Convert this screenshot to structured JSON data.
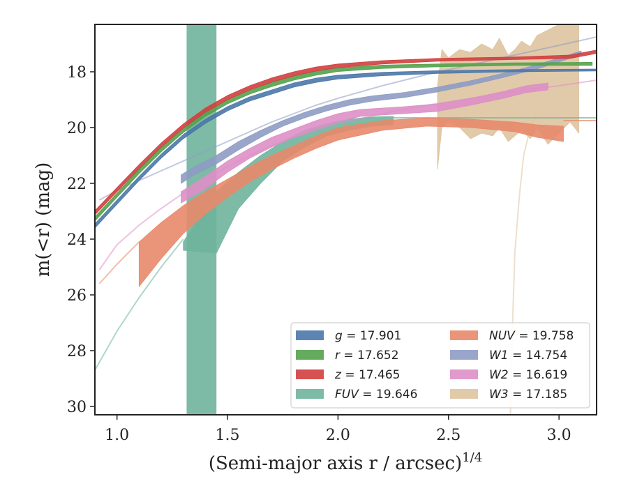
{
  "chart_data": {
    "type": "line",
    "title": "",
    "xlabel": "(Semi-major axis r / arcsec)",
    "xlabel_sup": "1/4",
    "ylabel": "m(<r) (mag)",
    "xlim": [
      0.9,
      3.17
    ],
    "ylim": [
      30.3,
      16.3
    ],
    "y_inverted": true,
    "x_ticks": [
      1.0,
      1.5,
      2.0,
      2.5,
      3.0
    ],
    "x_tick_labels": [
      "1.0",
      "1.5",
      "2.0",
      "2.5",
      "3.0"
    ],
    "y_ticks": [
      18,
      20,
      22,
      24,
      26,
      28,
      30
    ],
    "y_tick_labels": [
      "18",
      "20",
      "22",
      "24",
      "26",
      "28",
      "30"
    ],
    "grid": false,
    "legend_position": "lower-right",
    "legend": [
      {
        "name": "g",
        "value": "17.901"
      },
      {
        "name": "r",
        "value": "17.652"
      },
      {
        "name": "z",
        "value": "17.465"
      },
      {
        "name": "FUV",
        "value": "19.646"
      },
      {
        "name": "NUV",
        "value": "19.758"
      },
      {
        "name": "W1",
        "value": "14.754"
      },
      {
        "name": "W2",
        "value": "16.619"
      },
      {
        "name": "W3",
        "value": "17.185"
      }
    ],
    "series": [
      {
        "name": "g",
        "total": 17.901,
        "color": "#4c78a8",
        "faint": [],
        "band": [
          [
            0.9,
            23.45,
            23.6
          ],
          [
            1.0,
            22.6,
            22.75
          ],
          [
            1.1,
            21.75,
            21.9
          ],
          [
            1.2,
            20.95,
            21.1
          ],
          [
            1.3,
            20.25,
            20.4
          ],
          [
            1.4,
            19.7,
            19.85
          ],
          [
            1.5,
            19.25,
            19.4
          ],
          [
            1.6,
            18.9,
            19.05
          ],
          [
            1.7,
            18.65,
            18.8
          ],
          [
            1.8,
            18.4,
            18.55
          ],
          [
            1.9,
            18.23,
            18.38
          ],
          [
            2.0,
            18.12,
            18.26
          ],
          [
            2.2,
            18.02,
            18.14
          ],
          [
            2.45,
            17.96,
            18.06
          ],
          [
            2.8,
            17.92,
            18.0
          ],
          [
            3.17,
            17.9,
            17.97
          ]
        ]
      },
      {
        "name": "r",
        "total": 17.652,
        "color": "#54a24b",
        "faint": [],
        "band": [
          [
            0.9,
            23.2,
            23.35
          ],
          [
            1.0,
            22.35,
            22.5
          ],
          [
            1.1,
            21.5,
            21.65
          ],
          [
            1.2,
            20.72,
            20.87
          ],
          [
            1.3,
            20.03,
            20.18
          ],
          [
            1.4,
            19.45,
            19.6
          ],
          [
            1.5,
            19.0,
            19.15
          ],
          [
            1.6,
            18.65,
            18.8
          ],
          [
            1.7,
            18.38,
            18.53
          ],
          [
            1.8,
            18.15,
            18.3
          ],
          [
            1.9,
            17.98,
            18.12
          ],
          [
            2.0,
            17.86,
            17.99
          ],
          [
            2.2,
            17.76,
            17.88
          ],
          [
            2.45,
            17.72,
            17.82
          ],
          [
            2.8,
            17.68,
            17.77
          ],
          [
            3.15,
            17.66,
            17.77
          ]
        ]
      },
      {
        "name": "z",
        "total": 17.465,
        "color": "#d13f3f",
        "faint": [],
        "band": [
          [
            0.9,
            22.98,
            23.13
          ],
          [
            1.0,
            22.15,
            22.3
          ],
          [
            1.1,
            21.33,
            21.48
          ],
          [
            1.2,
            20.55,
            20.7
          ],
          [
            1.3,
            19.87,
            20.02
          ],
          [
            1.4,
            19.3,
            19.45
          ],
          [
            1.5,
            18.85,
            19.0
          ],
          [
            1.6,
            18.5,
            18.65
          ],
          [
            1.7,
            18.22,
            18.37
          ],
          [
            1.8,
            18.0,
            18.15
          ],
          [
            1.9,
            17.83,
            17.97
          ],
          [
            2.0,
            17.72,
            17.85
          ],
          [
            2.2,
            17.6,
            17.72
          ],
          [
            2.45,
            17.52,
            17.62
          ],
          [
            2.8,
            17.47,
            17.56
          ],
          [
            3.05,
            17.4,
            17.52
          ],
          [
            3.17,
            17.22,
            17.34
          ]
        ]
      },
      {
        "name": "FUV",
        "total": 19.646,
        "color": "#6fb49c",
        "faint": [
          [
            0.9,
            28.7
          ],
          [
            1.0,
            27.3
          ],
          [
            1.1,
            26.1
          ],
          [
            1.2,
            25.0
          ],
          [
            1.3,
            24.0
          ]
        ],
        "flat": {
          "x0": 2.25,
          "x1": 3.17,
          "y": 19.65
        },
        "spike": {
          "x0": 1.315,
          "x1": 1.45,
          "y0": 16.3,
          "y1": 30.3
        },
        "band": [
          [
            1.3,
            24.1,
            24.4
          ],
          [
            1.45,
            22.3,
            24.5
          ],
          [
            1.55,
            21.6,
            22.9
          ],
          [
            1.65,
            21.0,
            22.0
          ],
          [
            1.75,
            20.5,
            21.2
          ],
          [
            1.85,
            20.1,
            20.7
          ],
          [
            1.95,
            19.85,
            20.3
          ],
          [
            2.05,
            19.7,
            20.1
          ],
          [
            2.15,
            19.62,
            19.95
          ],
          [
            2.25,
            19.6,
            19.9
          ]
        ]
      },
      {
        "name": "NUV",
        "total": 19.758,
        "color": "#e8896a",
        "faint": [
          [
            0.92,
            25.6
          ],
          [
            1.0,
            24.9
          ],
          [
            1.1,
            24.1
          ]
        ],
        "flat": {
          "x0": 3.02,
          "x1": 3.17,
          "y": 19.75
        },
        "band": [
          [
            1.1,
            24.1,
            25.7
          ],
          [
            1.2,
            23.4,
            24.7
          ],
          [
            1.3,
            22.8,
            23.8
          ],
          [
            1.4,
            22.3,
            23.1
          ],
          [
            1.5,
            21.85,
            22.5
          ],
          [
            1.6,
            21.4,
            21.95
          ],
          [
            1.7,
            21.0,
            21.5
          ],
          [
            1.8,
            20.65,
            21.1
          ],
          [
            1.9,
            20.3,
            20.75
          ],
          [
            2.0,
            20.0,
            20.45
          ],
          [
            2.2,
            19.75,
            20.1
          ],
          [
            2.4,
            19.65,
            19.95
          ],
          [
            2.6,
            19.7,
            20.0
          ],
          [
            2.8,
            19.8,
            20.15
          ],
          [
            2.9,
            19.9,
            20.35
          ],
          [
            3.02,
            19.95,
            20.5
          ]
        ]
      },
      {
        "name": "W1",
        "total": 14.754,
        "color": "#8e9cc4",
        "faint": [
          [
            0.92,
            22.6
          ],
          [
            1.0,
            22.25
          ],
          [
            1.1,
            21.9
          ],
          [
            1.2,
            21.55
          ],
          [
            1.3,
            21.2
          ],
          [
            1.4,
            20.85
          ],
          [
            1.5,
            20.5
          ],
          [
            1.6,
            20.15
          ],
          [
            1.7,
            19.8
          ],
          [
            1.8,
            19.5
          ],
          [
            1.9,
            19.2
          ],
          [
            2.0,
            18.95
          ],
          [
            2.2,
            18.5
          ],
          [
            2.4,
            18.1
          ],
          [
            2.6,
            17.75
          ],
          [
            2.8,
            17.4
          ],
          [
            3.0,
            17.05
          ],
          [
            3.17,
            16.75
          ]
        ],
        "band": [
          [
            1.29,
            21.7,
            22.0
          ],
          [
            1.35,
            21.4,
            21.7
          ],
          [
            1.45,
            21.0,
            21.3
          ],
          [
            1.55,
            20.5,
            20.8
          ],
          [
            1.65,
            20.1,
            20.35
          ],
          [
            1.75,
            19.75,
            19.95
          ],
          [
            1.85,
            19.45,
            19.65
          ],
          [
            1.95,
            19.2,
            19.4
          ],
          [
            2.05,
            19.0,
            19.2
          ],
          [
            2.15,
            18.87,
            19.06
          ],
          [
            2.3,
            18.74,
            18.92
          ],
          [
            2.45,
            18.55,
            18.72
          ],
          [
            2.6,
            18.32,
            18.48
          ],
          [
            2.75,
            18.05,
            18.2
          ],
          [
            2.9,
            17.75,
            17.9
          ],
          [
            3.0,
            17.5,
            17.65
          ],
          [
            3.1,
            17.25,
            17.38
          ]
        ]
      },
      {
        "name": "W2",
        "total": 16.619,
        "color": "#dd8fc6",
        "faint": [
          [
            0.92,
            25.1
          ],
          [
            1.0,
            24.2
          ],
          [
            1.1,
            23.5
          ],
          [
            1.2,
            22.9
          ],
          [
            1.3,
            22.35
          ],
          [
            1.4,
            21.85
          ],
          [
            1.5,
            21.4
          ],
          [
            1.6,
            21.0
          ],
          [
            1.7,
            20.65
          ],
          [
            1.8,
            20.35
          ],
          [
            1.9,
            20.1
          ],
          [
            2.0,
            19.85
          ],
          [
            2.2,
            19.5
          ],
          [
            2.4,
            19.2
          ],
          [
            2.6,
            18.95
          ],
          [
            2.8,
            18.7
          ],
          [
            3.0,
            18.5
          ],
          [
            3.17,
            18.3
          ]
        ],
        "band": [
          [
            1.29,
            22.3,
            22.7
          ],
          [
            1.4,
            21.75,
            22.2
          ],
          [
            1.5,
            21.2,
            21.6
          ],
          [
            1.6,
            20.75,
            21.1
          ],
          [
            1.7,
            20.35,
            20.7
          ],
          [
            1.8,
            20.05,
            20.35
          ],
          [
            1.9,
            19.75,
            20.05
          ],
          [
            2.0,
            19.5,
            19.8
          ],
          [
            2.1,
            19.35,
            19.6
          ],
          [
            2.2,
            19.3,
            19.55
          ],
          [
            2.3,
            19.25,
            19.5
          ],
          [
            2.45,
            19.15,
            19.42
          ],
          [
            2.6,
            18.95,
            19.2
          ],
          [
            2.75,
            18.7,
            18.95
          ],
          [
            2.85,
            18.5,
            18.75
          ],
          [
            2.95,
            18.4,
            18.65
          ]
        ]
      },
      {
        "name": "W3",
        "total": 17.185,
        "color": "#dec4a0",
        "faint": [
          [
            2.78,
            30.3
          ],
          [
            2.79,
            27.0
          ],
          [
            2.8,
            24.5
          ],
          [
            2.82,
            22.5
          ],
          [
            2.84,
            21.0
          ],
          [
            2.87,
            20.0
          ],
          [
            2.9,
            19.4
          ]
        ],
        "band": [
          [
            2.45,
            18.5,
            21.5
          ],
          [
            2.47,
            17.2,
            20.0
          ],
          [
            2.5,
            17.5,
            19.8
          ],
          [
            2.55,
            17.2,
            20.0
          ],
          [
            2.6,
            17.3,
            20.4
          ],
          [
            2.65,
            17.0,
            20.2
          ],
          [
            2.7,
            17.2,
            20.3
          ],
          [
            2.73,
            16.8,
            20.0
          ],
          [
            2.77,
            17.4,
            20.5
          ],
          [
            2.8,
            17.2,
            20.3
          ],
          [
            2.83,
            16.9,
            20.1
          ],
          [
            2.87,
            17.1,
            20.4
          ],
          [
            2.9,
            16.7,
            20.0
          ],
          [
            2.95,
            16.5,
            20.6
          ],
          [
            3.0,
            16.3,
            20.2
          ],
          [
            3.05,
            16.3,
            19.8
          ],
          [
            3.09,
            16.3,
            20.2
          ]
        ]
      }
    ]
  }
}
